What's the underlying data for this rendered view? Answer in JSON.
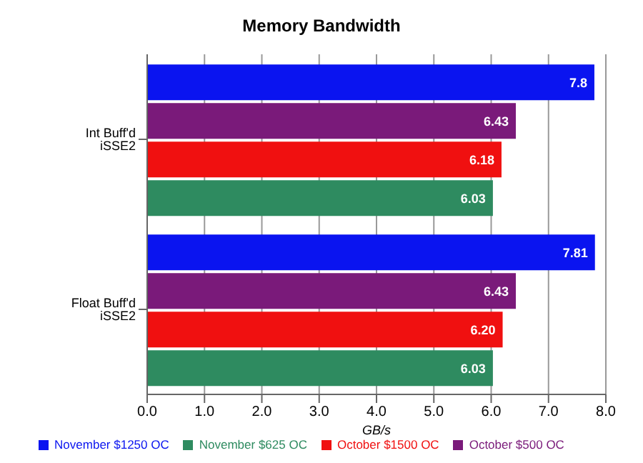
{
  "chart_data": {
    "type": "bar",
    "orientation": "horizontal",
    "title": "Memory Bandwidth",
    "xlabel": "GB/s",
    "categories": [
      "Int Buff'd iSSE2",
      "Float Buff'd iSSE2"
    ],
    "series": [
      {
        "name": "November $1250 OC",
        "color": "#0a14f0",
        "values": [
          7.8,
          7.81
        ],
        "value_labels": [
          "7.8",
          "7.81"
        ]
      },
      {
        "name": "October $500 OC",
        "color": "#7a1a7a",
        "values": [
          6.43,
          6.43
        ],
        "value_labels": [
          "6.43",
          "6.43"
        ]
      },
      {
        "name": "October $1500 OC",
        "color": "#f01010",
        "values": [
          6.18,
          6.2
        ],
        "value_labels": [
          "6.18",
          "6.20"
        ]
      },
      {
        "name": "November $625 OC",
        "color": "#2e8b60",
        "values": [
          6.03,
          6.03
        ],
        "value_labels": [
          "6.03",
          "6.03"
        ]
      }
    ],
    "xlim": [
      0,
      8
    ],
    "xticks": [
      {
        "value": 0,
        "label": "0.0"
      },
      {
        "value": 1,
        "label": "1.0"
      },
      {
        "value": 2,
        "label": "2.0"
      },
      {
        "value": 3,
        "label": "3.0"
      },
      {
        "value": 4,
        "label": "4.0"
      },
      {
        "value": 5,
        "label": "5.0"
      },
      {
        "value": 6,
        "label": "6.0"
      },
      {
        "value": 7,
        "label": "7.0"
      },
      {
        "value": 8,
        "label": "8.0"
      }
    ],
    "grid": "x",
    "legend": "bottom"
  }
}
